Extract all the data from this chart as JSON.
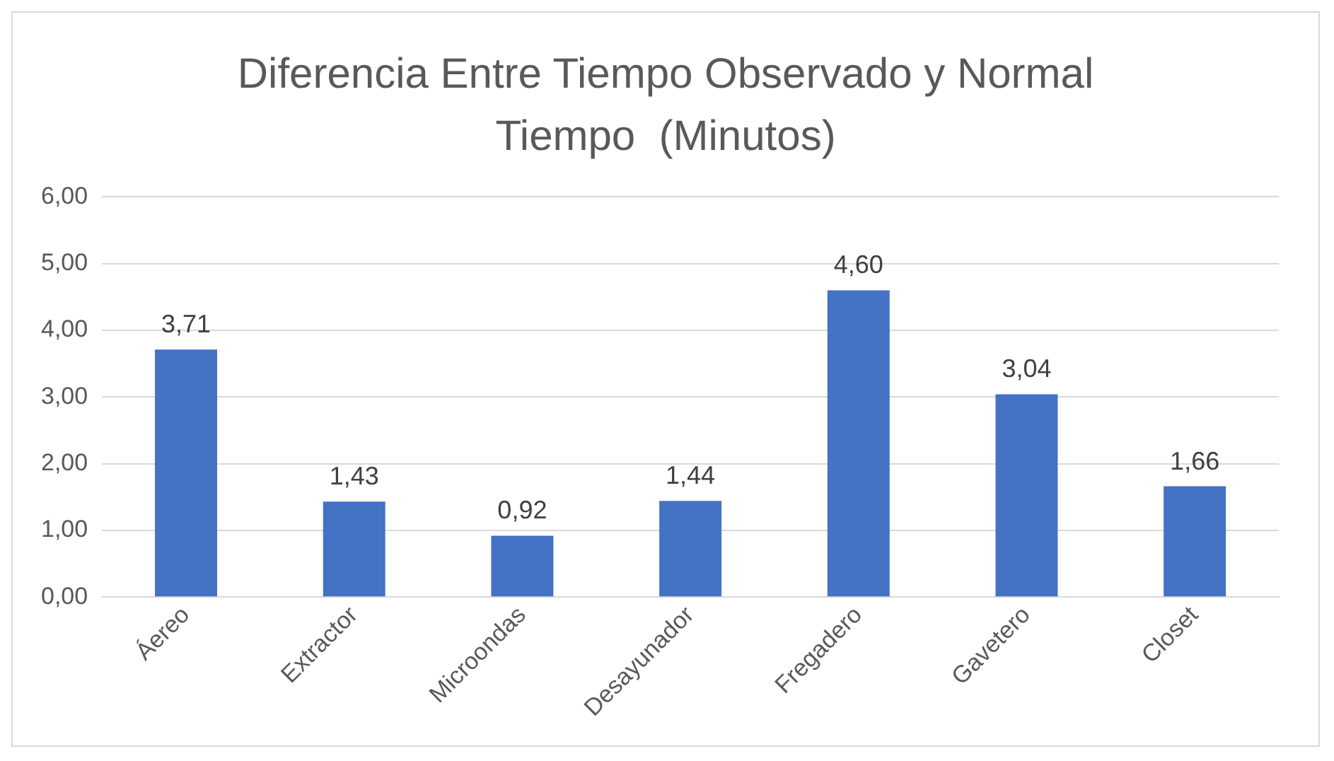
{
  "chart_data": {
    "type": "bar",
    "title": "Diferencia Entre Tiempo Observado y Normal Tiempo  (Minutos)",
    "categories": [
      "Áereo",
      "Extractor",
      "Microondas",
      "Desayunador",
      "Fregadero",
      "Gavetero",
      "Closet"
    ],
    "values": [
      3.71,
      1.43,
      0.92,
      1.44,
      4.6,
      3.04,
      1.66
    ],
    "value_labels": [
      "3,71",
      "1,43",
      "0,92",
      "1,44",
      "4,60",
      "3,04",
      "1,66"
    ],
    "color": "#4472c4",
    "ylim": [
      0,
      6
    ],
    "yticks": [
      {
        "value": 0,
        "label": "0,00"
      },
      {
        "value": 1,
        "label": "1,00"
      },
      {
        "value": 2,
        "label": "2,00"
      },
      {
        "value": 3,
        "label": "3,00"
      },
      {
        "value": 4,
        "label": "4,00"
      },
      {
        "value": 5,
        "label": "5,00"
      },
      {
        "value": 6,
        "label": "6,00"
      }
    ],
    "grid": "y"
  }
}
